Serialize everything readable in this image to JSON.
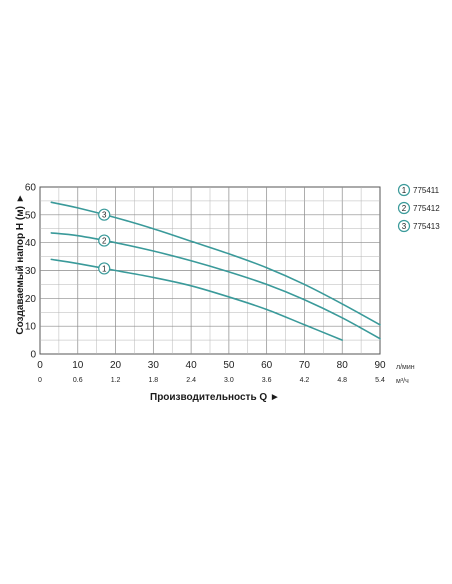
{
  "chart_data": {
    "type": "line",
    "xlabel": "Производительность Q ►",
    "ylabel": "Создаваемый напор H (м) ►",
    "x_unit": "л/мин",
    "x2_unit": "м³/ч",
    "xlim": [
      0,
      90
    ],
    "ylim": [
      0,
      60
    ],
    "x_ticks": [
      "0",
      "10",
      "20",
      "30",
      "40",
      "50",
      "60",
      "70",
      "80",
      "90"
    ],
    "x2_ticks": [
      "0",
      "0.6",
      "1.2",
      "1.8",
      "2.4",
      "3.0",
      "3.6",
      "4.2",
      "4.8",
      "5.4"
    ],
    "y_ticks": [
      "0",
      "10",
      "20",
      "30",
      "40",
      "50",
      "60"
    ],
    "grid": true,
    "legend_position": "right",
    "series": [
      {
        "name": "775411",
        "marker": "1",
        "color": "#3a9a9a",
        "x": [
          3,
          10,
          20,
          30,
          40,
          50,
          60,
          70,
          80
        ],
        "y": [
          34,
          32.5,
          30,
          27.5,
          24.5,
          20.5,
          16,
          10.5,
          5
        ]
      },
      {
        "name": "775412",
        "marker": "2",
        "color": "#3a9a9a",
        "x": [
          3,
          10,
          20,
          30,
          40,
          50,
          60,
          70,
          80,
          90
        ],
        "y": [
          43.5,
          42.5,
          40,
          37,
          33.5,
          29.5,
          25,
          19.5,
          13,
          5.5
        ]
      },
      {
        "name": "775413",
        "marker": "3",
        "color": "#3a9a9a",
        "x": [
          3,
          10,
          20,
          30,
          40,
          50,
          60,
          70,
          80,
          90
        ],
        "y": [
          54.5,
          52.5,
          49,
          45,
          40.5,
          36,
          31,
          25,
          18,
          10.5
        ]
      }
    ]
  }
}
